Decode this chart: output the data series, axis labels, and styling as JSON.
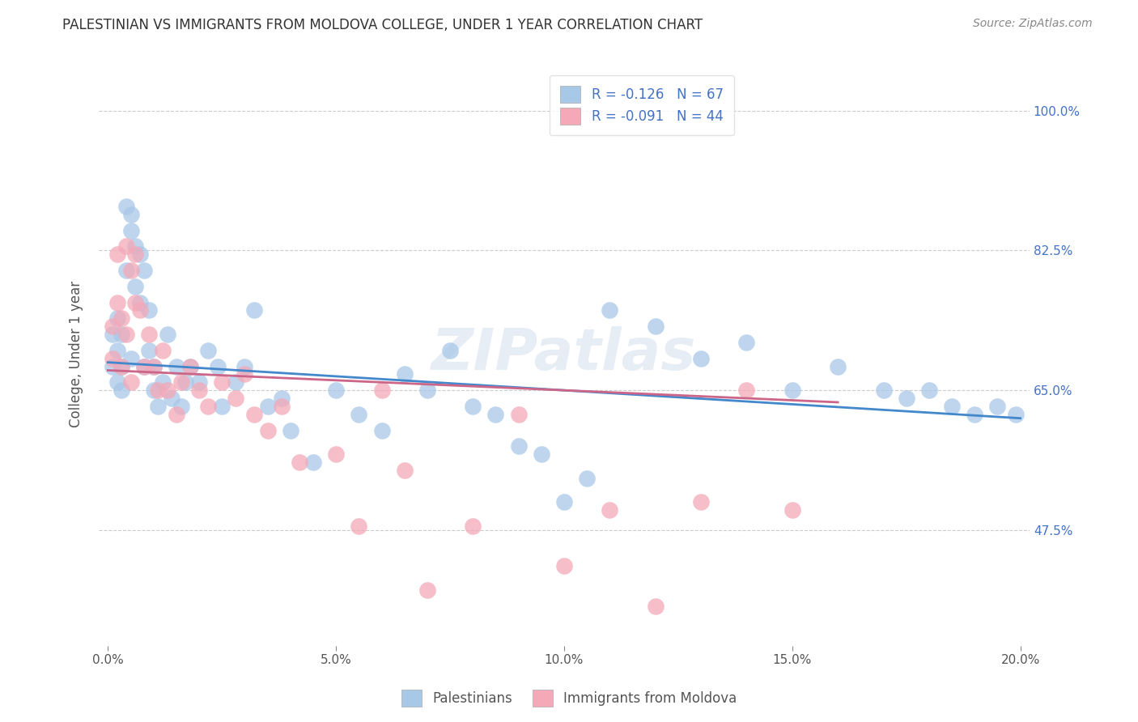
{
  "title": "PALESTINIAN VS IMMIGRANTS FROM MOLDOVA COLLEGE, UNDER 1 YEAR CORRELATION CHART",
  "source": "Source: ZipAtlas.com",
  "xlabel_ticks": [
    "0.0%",
    "5.0%",
    "10.0%",
    "15.0%",
    "20.0%"
  ],
  "xlabel_tick_vals": [
    0.0,
    0.05,
    0.1,
    0.15,
    0.2
  ],
  "ylabel_ticks": [
    "47.5%",
    "65.0%",
    "82.5%",
    "100.0%"
  ],
  "ylabel_tick_vals": [
    0.475,
    0.65,
    0.825,
    1.0
  ],
  "ylabel": "College, Under 1 year",
  "legend1_label": "R = -0.126   N = 67",
  "legend2_label": "R = -0.091   N = 44",
  "blue_color": "#a8c8e8",
  "pink_color": "#f4a8b8",
  "blue_line_color": "#4488cc",
  "pink_line_color": "#cc6688",
  "watermark": "ZIPatlas",
  "blue_line_x0": 0.0,
  "blue_line_y0": 0.685,
  "blue_line_x1": 0.2,
  "blue_line_y1": 0.615,
  "pink_line_x0": 0.0,
  "pink_line_y0": 0.675,
  "pink_line_x1": 0.16,
  "pink_line_y1": 0.635,
  "blue_points_x": [
    0.001,
    0.001,
    0.002,
    0.002,
    0.002,
    0.003,
    0.003,
    0.003,
    0.004,
    0.004,
    0.005,
    0.005,
    0.005,
    0.006,
    0.006,
    0.007,
    0.007,
    0.008,
    0.008,
    0.009,
    0.009,
    0.01,
    0.01,
    0.011,
    0.012,
    0.013,
    0.014,
    0.015,
    0.016,
    0.017,
    0.018,
    0.02,
    0.022,
    0.024,
    0.025,
    0.028,
    0.03,
    0.032,
    0.035,
    0.038,
    0.04,
    0.045,
    0.05,
    0.055,
    0.06,
    0.065,
    0.07,
    0.075,
    0.08,
    0.085,
    0.09,
    0.095,
    0.1,
    0.105,
    0.11,
    0.12,
    0.13,
    0.14,
    0.15,
    0.16,
    0.17,
    0.175,
    0.18,
    0.185,
    0.19,
    0.195,
    0.199
  ],
  "blue_points_y": [
    0.68,
    0.72,
    0.7,
    0.74,
    0.66,
    0.68,
    0.72,
    0.65,
    0.8,
    0.88,
    0.87,
    0.85,
    0.69,
    0.83,
    0.78,
    0.76,
    0.82,
    0.8,
    0.68,
    0.75,
    0.7,
    0.68,
    0.65,
    0.63,
    0.66,
    0.72,
    0.64,
    0.68,
    0.63,
    0.66,
    0.68,
    0.66,
    0.7,
    0.68,
    0.63,
    0.66,
    0.68,
    0.75,
    0.63,
    0.64,
    0.6,
    0.56,
    0.65,
    0.62,
    0.6,
    0.67,
    0.65,
    0.7,
    0.63,
    0.62,
    0.58,
    0.57,
    0.51,
    0.54,
    0.75,
    0.73,
    0.69,
    0.71,
    0.65,
    0.68,
    0.65,
    0.64,
    0.65,
    0.63,
    0.62,
    0.63,
    0.62
  ],
  "pink_points_x": [
    0.001,
    0.001,
    0.002,
    0.002,
    0.003,
    0.003,
    0.004,
    0.004,
    0.005,
    0.005,
    0.006,
    0.006,
    0.007,
    0.008,
    0.009,
    0.01,
    0.011,
    0.012,
    0.013,
    0.015,
    0.016,
    0.018,
    0.02,
    0.022,
    0.025,
    0.028,
    0.03,
    0.032,
    0.035,
    0.038,
    0.042,
    0.05,
    0.055,
    0.06,
    0.065,
    0.07,
    0.08,
    0.09,
    0.1,
    0.11,
    0.12,
    0.13,
    0.14,
    0.15
  ],
  "pink_points_y": [
    0.69,
    0.73,
    0.76,
    0.82,
    0.74,
    0.68,
    0.83,
    0.72,
    0.8,
    0.66,
    0.76,
    0.82,
    0.75,
    0.68,
    0.72,
    0.68,
    0.65,
    0.7,
    0.65,
    0.62,
    0.66,
    0.68,
    0.65,
    0.63,
    0.66,
    0.64,
    0.67,
    0.62,
    0.6,
    0.63,
    0.56,
    0.57,
    0.48,
    0.65,
    0.55,
    0.4,
    0.48,
    0.62,
    0.43,
    0.5,
    0.38,
    0.51,
    0.65,
    0.5
  ]
}
